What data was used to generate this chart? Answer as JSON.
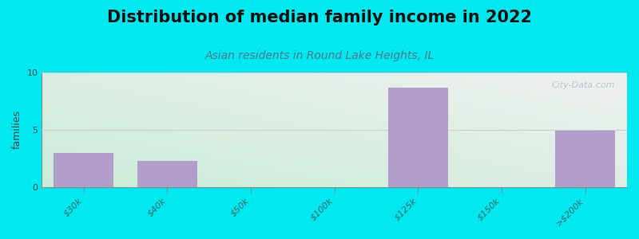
{
  "title": "Distribution of median family income in 2022",
  "subtitle": "Asian residents in Round Lake Heights, IL",
  "ylabel": "families",
  "categories": [
    "$30k",
    "$40k",
    "$50k",
    "$100k",
    "$125k",
    "$150k",
    ">$200k"
  ],
  "values": [
    3.0,
    2.3,
    0,
    0,
    8.7,
    0,
    4.9
  ],
  "bar_color": "#b39dca",
  "bar_width": 0.72,
  "ylim": [
    0,
    10
  ],
  "yticks": [
    0,
    5,
    10
  ],
  "background_outer": "#00e8f0",
  "plot_bg_left_bottom": "#c8ecd8",
  "plot_bg_right_top": "#f0f0ee",
  "grid_color": "#cccccc",
  "title_fontsize": 15,
  "subtitle_fontsize": 10,
  "ylabel_fontsize": 9,
  "tick_fontsize": 8,
  "watermark": "City-Data.com"
}
